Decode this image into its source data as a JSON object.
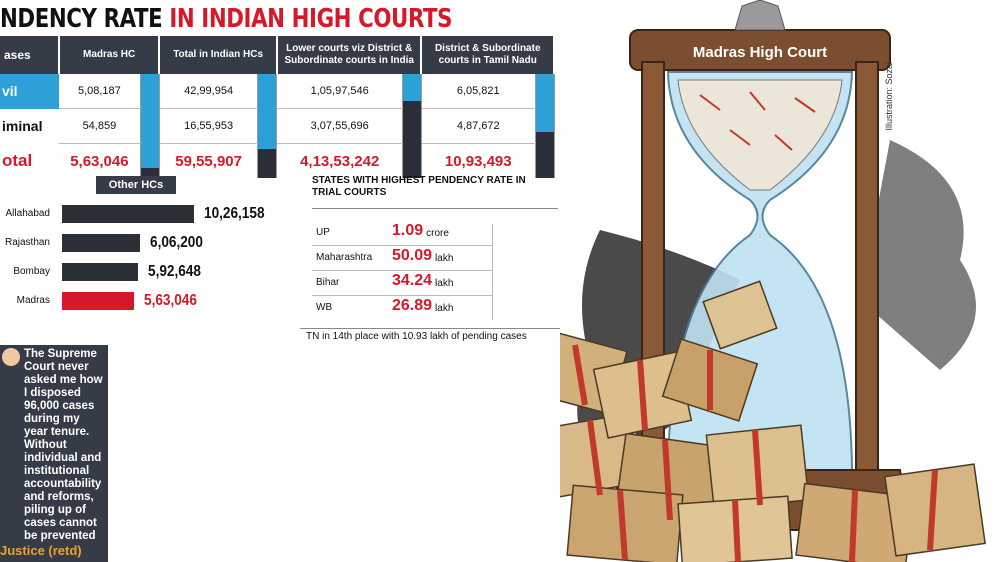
{
  "title": {
    "part1": "NDENCY RATE",
    "part2": "IN INDIAN HIGH COURTS"
  },
  "table": {
    "headers": [
      "ases",
      "Madras HC",
      "Total in Indian HCs",
      "Lower courts viz District & Subordinate courts in India",
      "District & Subordinate courts in Tamil Nadu"
    ],
    "rows": [
      {
        "label": "vil",
        "values": [
          "5,08,187",
          "42,99,954",
          "1,05,97,546",
          "6,05,821"
        ]
      },
      {
        "label": "iminal",
        "values": [
          "54,859",
          "16,55,953",
          "3,07,55,696",
          "4,87,672"
        ]
      },
      {
        "label": "otal",
        "values": [
          "5,63,046",
          "59,55,907",
          "4,13,53,242",
          "10,93,493"
        ]
      }
    ]
  },
  "chart_data": [
    {
      "type": "bar",
      "title": "Other HCs",
      "categories": [
        "Allahabad",
        "Rajasthan",
        "Bombay",
        "Madras"
      ],
      "values": [
        1026158,
        606200,
        592648,
        563046
      ],
      "labels": [
        "10,26,158",
        "6,06,200",
        "5,92,648",
        "5,63,046"
      ],
      "highlight": "Madras",
      "colors": {
        "default": "#2b2f38",
        "highlight": "#d6192a"
      }
    },
    {
      "type": "bar",
      "title": "",
      "categories": [
        "Civil",
        "Criminal"
      ],
      "series": [
        {
          "values": [
            508187,
            54859
          ]
        },
        {
          "values": [
            4299954,
            1655953
          ]
        },
        {
          "values": [
            10597546,
            30755696
          ]
        },
        {
          "values": [
            605821,
            487672
          ]
        }
      ],
      "colors": {
        "civil": "#2ea0d8",
        "criminal": "#2b2f38"
      }
    }
  ],
  "states": {
    "heading": "STATES WITH HIGHEST PENDENCY RATE IN TRIAL COURTS",
    "items": [
      {
        "name": "UP",
        "value": "1.09",
        "unit": "crore"
      },
      {
        "name": "Maharashtra",
        "value": "50.09",
        "unit": "lakh"
      },
      {
        "name": "Bihar",
        "value": "34.24",
        "unit": "lakh"
      },
      {
        "name": "WB",
        "value": "26.89",
        "unit": "lakh"
      }
    ]
  },
  "note": "TN in 14th place with 10.93 lakh of pending cases",
  "quote": {
    "text": "The Supreme Court never asked me how I disposed 96,000 cases during my year tenure. Without individual and institutional accountability and reforms, piling up of cases cannot be prevented",
    "author": "Justice (retd)"
  },
  "illustration": {
    "sign": "Madras High Court",
    "credit": "Illustration: Sozai"
  },
  "colors": {
    "accent_red": "#d6192a",
    "accent_blue": "#2ea0d8",
    "dark": "#363c47"
  }
}
